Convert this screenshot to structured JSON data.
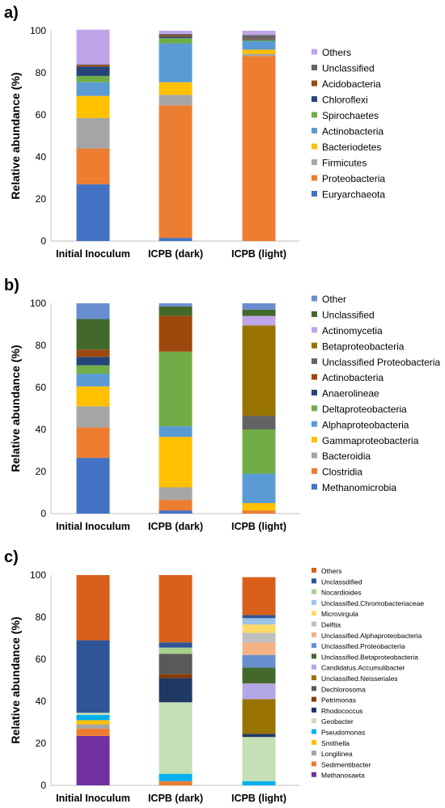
{
  "figure": {
    "categories": [
      "Initial Inoculum",
      "ICPB (dark)",
      "ICPB (light)"
    ],
    "ylabel": "Relative abundance (%)",
    "y_ticks": [
      "0",
      "20",
      "40",
      "60",
      "80",
      "100"
    ]
  },
  "chart_data": [
    {
      "panel_label": "a)",
      "type": "bar",
      "stacked": true,
      "categories": [
        "Initial Inoculum",
        "ICPB (dark)",
        "ICPB (light)"
      ],
      "ylabel": "Relative abundance (%)",
      "ylim": [
        0,
        100
      ],
      "grid": false,
      "legend_position": "right",
      "series": [
        {
          "name": "Euryarchaeota",
          "color": "#4472C4",
          "values": [
            27,
            1.5,
            0
          ]
        },
        {
          "name": "Proteobacteria",
          "color": "#ED7D31",
          "values": [
            17,
            63,
            88
          ]
        },
        {
          "name": "Firmicutes",
          "color": "#A5A5A5",
          "values": [
            14.5,
            5,
            1
          ]
        },
        {
          "name": "Bacteriodetes",
          "color": "#FFC000",
          "values": [
            10.5,
            6,
            2
          ]
        },
        {
          "name": "Actinobacteria",
          "color": "#5B9BD5",
          "values": [
            6.5,
            18.5,
            4
          ]
        },
        {
          "name": "Spirochaetes",
          "color": "#70AD47",
          "values": [
            3,
            2.5,
            0.5
          ]
        },
        {
          "name": "Chloroflexi",
          "color": "#264478",
          "values": [
            4.5,
            0.7,
            0.3
          ]
        },
        {
          "name": "Acidobacteria",
          "color": "#9E480E",
          "values": [
            0.7,
            0.5,
            0.3
          ]
        },
        {
          "name": "Unclassified",
          "color": "#636363",
          "values": [
            0.3,
            0.8,
            1.9
          ]
        },
        {
          "name": "Others",
          "color": "#BFA5E8",
          "values": [
            16.5,
            1.5,
            2
          ]
        }
      ]
    },
    {
      "panel_label": "b)",
      "type": "bar",
      "stacked": true,
      "categories": [
        "Initial Inoculum",
        "ICPB (dark)",
        "ICPB (light)"
      ],
      "ylabel": "Relative abundance (%)",
      "ylim": [
        0,
        100
      ],
      "grid": false,
      "legend_position": "right",
      "series": [
        {
          "name": "Methanomicrobia",
          "color": "#4472C4",
          "values": [
            26.5,
            1.5,
            0
          ]
        },
        {
          "name": "Clostridia",
          "color": "#ED7D31",
          "values": [
            14.5,
            5,
            1.5
          ]
        },
        {
          "name": "Bacteroidia",
          "color": "#A5A5A5",
          "values": [
            10,
            6,
            0
          ]
        },
        {
          "name": "Gammaproteobacteria",
          "color": "#FFC000",
          "values": [
            9.5,
            24,
            3.5
          ]
        },
        {
          "name": "Alphaproteobacteria",
          "color": "#5B9BD5",
          "values": [
            6,
            5,
            14
          ]
        },
        {
          "name": "Deltaproteobacteria",
          "color": "#70AD47",
          "values": [
            4,
            35.5,
            21
          ]
        },
        {
          "name": "Anaerolineae",
          "color": "#264478",
          "values": [
            4,
            0,
            0
          ]
        },
        {
          "name": "Actinobacteria",
          "color": "#9E480E",
          "values": [
            3.5,
            17,
            0
          ]
        },
        {
          "name": "Unclassified Proteobacteria",
          "color": "#636363",
          "values": [
            0,
            0,
            6.5
          ]
        },
        {
          "name": "Betaproteobacteria",
          "color": "#997300",
          "values": [
            0,
            0,
            43
          ]
        },
        {
          "name": "Actinomycetia",
          "color": "#BFA5E8",
          "values": [
            0,
            0,
            4.5
          ]
        },
        {
          "name": "Unclassified",
          "color": "#43682B",
          "values": [
            14.5,
            4.5,
            3
          ]
        },
        {
          "name": "Other",
          "color": "#698ED0",
          "values": [
            7.5,
            1.5,
            3
          ]
        }
      ]
    },
    {
      "panel_label": "c)",
      "type": "bar",
      "stacked": true,
      "categories": [
        "Initial Inoculum",
        "ICPB (dark)",
        "ICPB (light)"
      ],
      "ylabel": "Relative abundance (%)",
      "ylim": [
        0,
        100
      ],
      "grid": false,
      "legend_position": "right",
      "series": [
        {
          "name": "Methanosaeta",
          "color": "#7030A0",
          "values": [
            23.5,
            0,
            0
          ]
        },
        {
          "name": "Sedimentibacter",
          "color": "#ED7D31",
          "values": [
            3.5,
            2,
            0
          ]
        },
        {
          "name": "Longilinea",
          "color": "#A5A5A5",
          "values": [
            2,
            0,
            0
          ]
        },
        {
          "name": "Smithella",
          "color": "#FFC000",
          "values": [
            2,
            0,
            0
          ]
        },
        {
          "name": "Pseudomonas",
          "color": "#00B0F0",
          "values": [
            2.5,
            3.5,
            2
          ]
        },
        {
          "name": "Geobacter",
          "color": "#C5E0B4",
          "values": [
            1,
            34,
            21
          ]
        },
        {
          "name": "Rhodococcus",
          "color": "#203864",
          "values": [
            0,
            11.5,
            1.5
          ]
        },
        {
          "name": "Petrimonas",
          "color": "#843C0C",
          "values": [
            0,
            2,
            0
          ]
        },
        {
          "name": "Dechlorosoma",
          "color": "#595959",
          "values": [
            0,
            9.5,
            0
          ]
        },
        {
          "name": "Unclassified.Neisseriales",
          "color": "#997300",
          "values": [
            0,
            0,
            16.5
          ]
        },
        {
          "name": "Candidatus.Accumulibacter",
          "color": "#B4A7E5",
          "values": [
            0,
            0,
            7.5
          ]
        },
        {
          "name": "Unclassified.Betaproteobacteria",
          "color": "#43682B",
          "values": [
            0,
            0,
            7.5
          ]
        },
        {
          "name": "Unclassified.Proteobacteria",
          "color": "#698ED0",
          "values": [
            0,
            0,
            6
          ]
        },
        {
          "name": "Unclassified.Alphaproteobacteria",
          "color": "#F4B183",
          "values": [
            0,
            0,
            6
          ]
        },
        {
          "name": "Delftia",
          "color": "#BFBFBF",
          "values": [
            0,
            0,
            4.5
          ]
        },
        {
          "name": "Microvirgula",
          "color": "#FFD966",
          "values": [
            0,
            0,
            4
          ]
        },
        {
          "name": "Unclassified.Chromobacteriaceae",
          "color": "#9DC3E6",
          "values": [
            0,
            0,
            3
          ]
        },
        {
          "name": "Nocardioides",
          "color": "#A9D18E",
          "values": [
            0,
            3,
            0
          ]
        },
        {
          "name": "Unclassdified",
          "color": "#2F5597",
          "values": [
            34.5,
            2.5,
            1.5
          ]
        },
        {
          "name": "Others",
          "color": "#D9601A",
          "values": [
            31,
            32,
            18
          ]
        }
      ]
    }
  ]
}
